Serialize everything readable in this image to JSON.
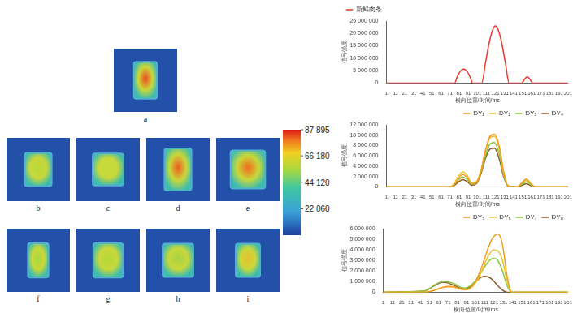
{
  "figure": {
    "images": [
      {
        "label": "a",
        "color": "#f04a1e"
      },
      {
        "label": "b",
        "color": "#b8d83a"
      },
      {
        "label": "c",
        "color": "#c8dc3c"
      },
      {
        "label": "d",
        "color": "#f05a22"
      },
      {
        "label": "e",
        "color": "#f26a1e"
      },
      {
        "label": "f",
        "color": "#a8d640"
      },
      {
        "label": "g",
        "color": "#b4d83c"
      },
      {
        "label": "h",
        "color": "#a6d444"
      },
      {
        "label": "i",
        "color": "#e8c030"
      }
    ],
    "colorbar": {
      "range": [
        0,
        87895
      ],
      "ticks": [
        {
          "value": 87895,
          "label": "87 895"
        },
        {
          "value": 66180,
          "label": "66 180"
        },
        {
          "value": 44120,
          "label": "44 120"
        },
        {
          "value": 22060,
          "label": "22 060"
        }
      ]
    }
  },
  "chart_data": [
    {
      "type": "line",
      "x_label": "横向位置/时间/ms",
      "y_label": "信号强度",
      "x": [
        1,
        76,
        79,
        82,
        86,
        90,
        93,
        96,
        106,
        110,
        114,
        118,
        121,
        124,
        128,
        132,
        136,
        150,
        153,
        156,
        159,
        162,
        201
      ],
      "series": [
        {
          "name": "新鲜肉条",
          "color": "#e8382a",
          "values": [
            0,
            0,
            2500000,
            4600000,
            5600000,
            4600000,
            2500000,
            0,
            0,
            8000000,
            16000000,
            21500000,
            23000000,
            21500000,
            16000000,
            8000000,
            0,
            0,
            1500000,
            2500000,
            1500000,
            0,
            0
          ]
        }
      ],
      "xlim": [
        1,
        201
      ],
      "xticks": [
        1,
        11,
        21,
        31,
        41,
        51,
        61,
        71,
        81,
        91,
        101,
        111,
        121,
        131,
        141,
        151,
        161,
        171,
        181,
        191,
        201
      ],
      "ylim": [
        0,
        25000000
      ],
      "yticks": [
        0,
        {
          "value": 5000000,
          "label": "5 000 000"
        },
        {
          "value": 10000000,
          "label": "10 000 000"
        },
        {
          "value": 15000000,
          "label": "15 000 000"
        },
        {
          "value": 20000000,
          "label": "20 000 000"
        },
        {
          "value": 25000000,
          "label": "25 000 000"
        }
      ],
      "grid": false,
      "legend": "upper left",
      "marker": "none"
    },
    {
      "type": "line",
      "x_label": "横向位置/时间/ms",
      "y_label": "信号强度",
      "x": [
        1,
        70,
        75,
        80,
        85,
        90,
        95,
        100,
        105,
        110,
        115,
        120,
        125,
        130,
        135,
        145,
        150,
        155,
        160,
        165,
        201
      ],
      "series": [
        {
          "name": "DY₁",
          "color": "#f39c1f",
          "values": [
            0,
            0,
            300000,
            1500000,
            2400000,
            1800000,
            600000,
            800000,
            3000000,
            7000000,
            9800000,
            10200000,
            8000000,
            3000000,
            200000,
            0,
            800000,
            1500000,
            600000,
            0,
            0
          ]
        },
        {
          "name": "DY₂",
          "color": "#e8c62a",
          "values": [
            0,
            0,
            500000,
            2000000,
            2900000,
            2200000,
            800000,
            1000000,
            3200000,
            7000000,
            9500000,
            9800000,
            7500000,
            2800000,
            200000,
            0,
            700000,
            1300000,
            500000,
            0,
            0
          ]
        },
        {
          "name": "DY₃",
          "color": "#8cc63e",
          "values": [
            0,
            0,
            300000,
            1300000,
            1900000,
            1400000,
            500000,
            800000,
            2800000,
            6000000,
            8300000,
            8600000,
            6500000,
            2300000,
            100000,
            0,
            500000,
            1000000,
            400000,
            0,
            0
          ]
        },
        {
          "name": "DY₄",
          "color": "#8b5a2b",
          "values": [
            0,
            0,
            200000,
            900000,
            1400000,
            1000000,
            300000,
            600000,
            2500000,
            5500000,
            7300000,
            7500000,
            5500000,
            2000000,
            100000,
            0,
            300000,
            600000,
            200000,
            0,
            0
          ]
        }
      ],
      "xlim": [
        1,
        201
      ],
      "xticks": [
        1,
        11,
        21,
        31,
        41,
        51,
        61,
        71,
        81,
        91,
        101,
        111,
        121,
        131,
        141,
        151,
        161,
        171,
        181,
        191,
        201
      ],
      "ylim": [
        0,
        12000000
      ],
      "yticks": [
        0,
        {
          "value": 2000000,
          "label": "2 000 000"
        },
        {
          "value": 4000000,
          "label": "4 000 000"
        },
        {
          "value": 6000000,
          "label": "6 000 000"
        },
        {
          "value": 8000000,
          "label": "8 000 000"
        },
        {
          "value": 10000000,
          "label": "10 000 000"
        },
        {
          "value": 12000000,
          "label": "12 000 000"
        }
      ],
      "grid": false,
      "legend": "upper right",
      "marker": "none"
    },
    {
      "type": "line",
      "x_label": "横向位置/时间/ms",
      "y_label": "信号强度",
      "x": [
        1,
        45,
        50,
        55,
        60,
        65,
        70,
        75,
        80,
        85,
        90,
        95,
        100,
        105,
        110,
        115,
        120,
        125,
        130,
        135,
        140,
        201
      ],
      "series": [
        {
          "name": "DY₅",
          "color": "#f39c1f",
          "values": [
            0,
            0,
            50000,
            150000,
            300000,
            450000,
            550000,
            550000,
            450000,
            300000,
            250000,
            400000,
            900000,
            1800000,
            3000000,
            4300000,
            5200000,
            5500000,
            4500000,
            1500000,
            0,
            0
          ]
        },
        {
          "name": "DY₆",
          "color": "#e8c62a",
          "values": [
            0,
            0,
            50000,
            150000,
            300000,
            450000,
            500000,
            500000,
            400000,
            300000,
            250000,
            350000,
            800000,
            1500000,
            2500000,
            3500000,
            4000000,
            3900000,
            3000000,
            1000000,
            0,
            0
          ]
        },
        {
          "name": "DY₇",
          "color": "#8cc63e",
          "values": [
            0,
            100000,
            300000,
            600000,
            850000,
            1000000,
            1000000,
            900000,
            700000,
            450000,
            400000,
            600000,
            1000000,
            1600000,
            2300000,
            2900000,
            3200000,
            3000000,
            2000000,
            600000,
            0,
            0
          ]
        },
        {
          "name": "DY₈",
          "color": "#8b5a2b",
          "values": [
            0,
            100000,
            300000,
            550000,
            800000,
            950000,
            900000,
            750000,
            550000,
            350000,
            300000,
            500000,
            900000,
            1300000,
            1500000,
            1450000,
            1100000,
            600000,
            200000,
            0,
            0,
            0
          ]
        }
      ],
      "xlim": [
        1,
        201
      ],
      "xticks": [
        1,
        11,
        21,
        31,
        41,
        51,
        61,
        71,
        81,
        91,
        101,
        111,
        121,
        131,
        141,
        151,
        161,
        171,
        181,
        191,
        201
      ],
      "ylim": [
        0,
        6000000
      ],
      "yticks": [
        0,
        {
          "value": 1000000,
          "label": "1 000 000"
        },
        {
          "value": 2000000,
          "label": "2 000 000"
        },
        {
          "value": 3000000,
          "label": "3 000 000"
        },
        {
          "value": 4000000,
          "label": "4 000 000"
        },
        {
          "value": 5000000,
          "label": "5 000 000"
        },
        {
          "value": 6000000,
          "label": "6 000 000"
        }
      ],
      "grid": false,
      "legend": "upper right",
      "marker": "none"
    }
  ]
}
